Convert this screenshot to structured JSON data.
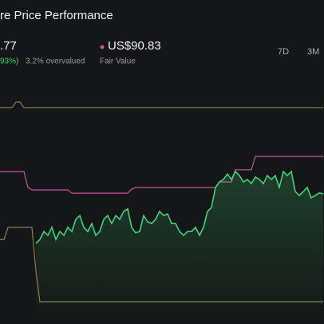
{
  "header": {
    "title": "re Price Performance",
    "price": ".77",
    "change": "93%)",
    "valuation": "3.2% overvalued",
    "fair_value": "US$90.83",
    "fair_value_label": "Fair Value",
    "periods": [
      "7D",
      "3M"
    ]
  },
  "chart_data": {
    "type": "line",
    "ylim": [
      30,
      110
    ],
    "series": [
      {
        "name": "Fair Value",
        "color": "#c0569c",
        "values": [
          85.4,
          85.4,
          85.4,
          85.4,
          85.4,
          85.4,
          85.4,
          79.6,
          78.7,
          78.7,
          78.7,
          78.7,
          78.7,
          78.7,
          78.7,
          78.7,
          78.7,
          78.7,
          77.5,
          77.5,
          77.5,
          77.5,
          77.5,
          77.5,
          77.5,
          77.5,
          77.5,
          77.5,
          77.5,
          77.5,
          77.5,
          77.5,
          77.5,
          79.0,
          79.6,
          79.6,
          79.6,
          79.6,
          79.6,
          79.6,
          79.6,
          79.6,
          79.6,
          79.6,
          79.6,
          79.6,
          79.6,
          79.6,
          79.6,
          79.6,
          79.6,
          79.6,
          79.6,
          79.6,
          79.6,
          81.6,
          81.6,
          81.6,
          81.6,
          86.0,
          86.0,
          86.0,
          86.0,
          86.0,
          90.83,
          90.83,
          90.83,
          90.83,
          90.83,
          90.83,
          90.83,
          90.83,
          90.83,
          90.83,
          90.83,
          90.83,
          90.83,
          90.83,
          90.83,
          90.83,
          90.83,
          90.83
        ]
      },
      {
        "color": "#858058",
        "values": [
          108.6,
          108.6,
          108.6,
          108.6,
          110.6,
          110.6,
          108.6,
          108.6,
          108.6,
          108.6,
          108.6,
          108.6,
          108.6,
          108.6,
          108.6,
          108.6,
          108.6,
          108.6,
          108.6,
          108.6,
          108.6,
          108.6,
          108.6,
          108.6,
          108.6,
          108.6,
          108.6,
          108.6,
          108.6,
          108.6,
          108.6,
          108.6,
          108.6,
          108.6,
          108.6,
          108.6,
          108.6,
          108.6,
          108.6,
          108.6,
          108.6,
          108.6,
          108.6,
          108.6,
          108.6,
          108.6,
          108.6,
          108.6,
          108.6,
          108.6,
          108.6,
          108.6,
          108.6,
          108.6,
          108.6,
          108.6,
          108.6,
          108.6,
          108.6,
          108.6,
          108.6,
          108.6,
          108.6,
          108.6,
          108.6,
          108.6,
          108.6,
          108.6,
          108.6,
          108.6,
          108.6,
          108.6,
          108.6,
          108.6,
          108.6,
          108.6,
          108.6,
          108.6,
          108.6,
          108.6,
          108.6,
          108.6
        ]
      },
      {
        "color": "#858058",
        "values": [
          60.7,
          60.7,
          65.1,
          65.1,
          65.1,
          65.1,
          65.1,
          65.1,
          65.1,
          49.1,
          38.1,
          38.1,
          38.1,
          38.1,
          38.1,
          38.1,
          38.1,
          38.1,
          38.1,
          38.1,
          38.1,
          38.1,
          38.1,
          38.1,
          38.1,
          38.1,
          38.1,
          38.1,
          38.1,
          38.1,
          38.1,
          38.1,
          38.1,
          38.1,
          38.1,
          38.1,
          38.1,
          38.1,
          38.1,
          38.1,
          38.1,
          38.1,
          38.1,
          38.1,
          38.1,
          38.1,
          38.1,
          38.1,
          38.1,
          38.1,
          38.1,
          38.1,
          38.1,
          38.1,
          38.1,
          38.1,
          38.1,
          38.1,
          38.1,
          38.1,
          38.1,
          38.1,
          38.1,
          38.1,
          38.1,
          38.1,
          38.1,
          38.1,
          38.1,
          38.1,
          38.1,
          38.1,
          38.1,
          38.1,
          38.1,
          38.1,
          38.1,
          38.1,
          38.1,
          38.1,
          38.1,
          38.1
        ]
      },
      {
        "color": "#3fd27b",
        "values": [
          null,
          null,
          null,
          null,
          null,
          null,
          null,
          null,
          null,
          59.3,
          60.7,
          63.6,
          62.2,
          65.1,
          60.7,
          63.6,
          62.2,
          65.1,
          63.6,
          68.0,
          69.4,
          65.1,
          63.6,
          66.5,
          62.2,
          63.6,
          68.0,
          69.4,
          66.5,
          69.4,
          68.0,
          70.9,
          71.8,
          65.1,
          63.1,
          63.6,
          69.4,
          67.1,
          66.5,
          68.0,
          70.9,
          69.4,
          70.0,
          66.5,
          66.5,
          63.6,
          62.2,
          63.6,
          63.6,
          65.1,
          62.2,
          65.1,
          70.9,
          72.3,
          79.6,
          81.6,
          82.5,
          84.5,
          82.5,
          85.4,
          83.9,
          81.6,
          82.5,
          81.0,
          83.4,
          82.5,
          81.0,
          83.9,
          82.5,
          83.9,
          79.6,
          85.4,
          83.9,
          85.4,
          78.1,
          76.7,
          78.1,
          79.6,
          75.8,
          76.7,
          77.6,
          77.3
        ]
      }
    ]
  }
}
